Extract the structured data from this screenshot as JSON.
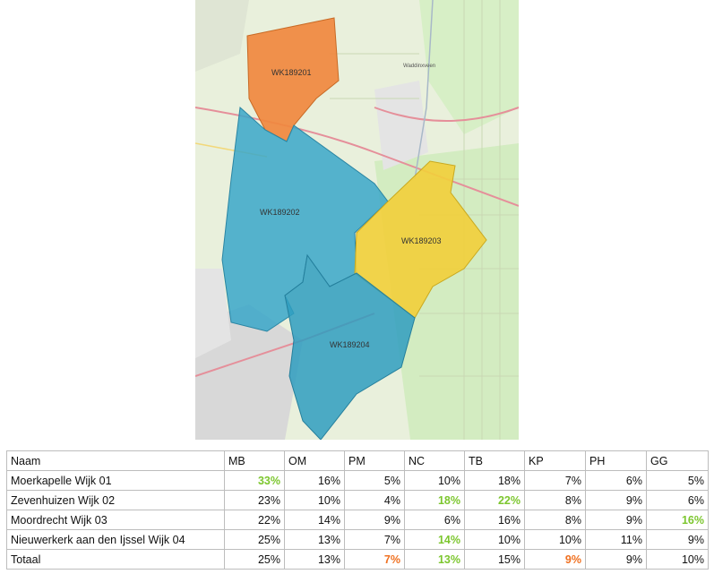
{
  "map": {
    "regions": [
      {
        "code": "WK189201",
        "color": "#f0883e"
      },
      {
        "code": "WK189202",
        "color": "#3aa7c9"
      },
      {
        "code": "WK189203",
        "color": "#f2cf3a"
      },
      {
        "code": "WK189204",
        "color": "#2f9dbf"
      }
    ],
    "place_label": "Waddinxveen"
  },
  "table": {
    "columns": [
      "Naam",
      "MB",
      "OM",
      "PM",
      "NC",
      "TB",
      "KP",
      "PH",
      "GG"
    ],
    "highlight_colors": {
      "green": "#7cc62e",
      "orange": "#f07020"
    },
    "rows": [
      {
        "name": "Moerkapelle Wijk 01",
        "values": [
          "33%",
          "16%",
          "5%",
          "10%",
          "18%",
          "7%",
          "6%",
          "5%"
        ],
        "highlight": [
          "green",
          "",
          "",
          "",
          "",
          "",
          "",
          ""
        ]
      },
      {
        "name": "Zevenhuizen Wijk 02",
        "values": [
          "23%",
          "10%",
          "4%",
          "18%",
          "22%",
          "8%",
          "9%",
          "6%"
        ],
        "highlight": [
          "",
          "",
          "",
          "green",
          "green",
          "",
          "",
          ""
        ]
      },
      {
        "name": "Moordrecht Wijk 03",
        "values": [
          "22%",
          "14%",
          "9%",
          "6%",
          "16%",
          "8%",
          "9%",
          "16%"
        ],
        "highlight": [
          "",
          "",
          "",
          "",
          "",
          "",
          "",
          "green"
        ]
      },
      {
        "name": "Nieuwerkerk aan den Ijssel Wijk 04",
        "values": [
          "25%",
          "13%",
          "7%",
          "14%",
          "10%",
          "10%",
          "11%",
          "9%"
        ],
        "highlight": [
          "",
          "",
          "",
          "green",
          "",
          "",
          "",
          ""
        ]
      },
      {
        "name": "Totaal",
        "values": [
          "25%",
          "13%",
          "7%",
          "13%",
          "15%",
          "9%",
          "9%",
          "10%"
        ],
        "highlight": [
          "",
          "",
          "orange",
          "green",
          "",
          "orange",
          "",
          ""
        ]
      }
    ]
  }
}
